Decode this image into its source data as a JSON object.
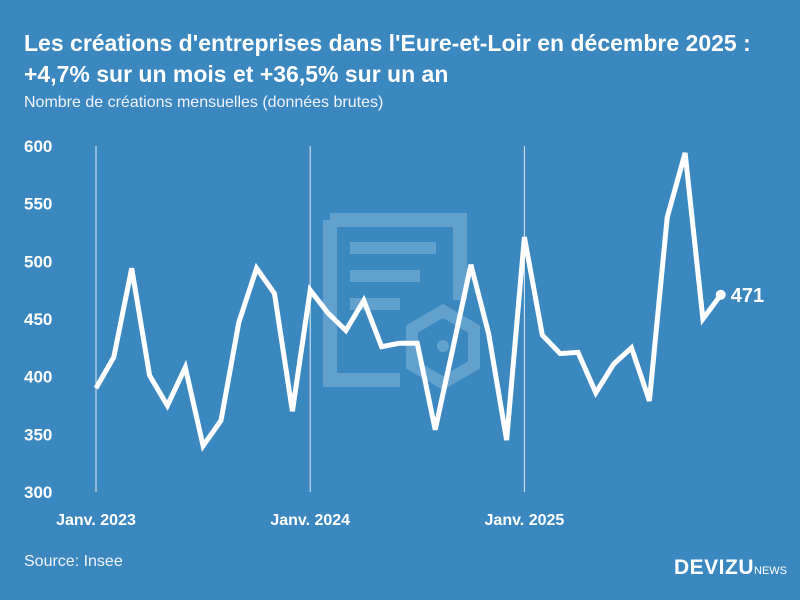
{
  "title": "Les créations d'entreprises dans l'Eure-et-Loir en décembre 2025 : +4,7% sur un mois et +36,5% sur un an",
  "subtitle": "Nombre de créations mensuelles (données brutes)",
  "source": "Source: Insee",
  "logo": {
    "main": "DEVIZU",
    "suffix": "NEWS"
  },
  "colors": {
    "background": "#3b88c1",
    "line": "#ffffff"
  },
  "chart_data": {
    "type": "line",
    "title": "Les créations d'entreprises dans l'Eure-et-Loir en décembre 2025 : +4,7% sur un mois et +36,5% sur un an",
    "ylabel": "",
    "xlabel": "",
    "ylim": [
      300,
      600
    ],
    "yticks": [
      "300",
      "350",
      "400",
      "450",
      "500",
      "550",
      "600"
    ],
    "xticks": [
      "Janv. 2023",
      "Janv. 2024",
      "Janv. 2025"
    ],
    "grid": "vertical lines at January",
    "x": [
      "2023-01",
      "2023-02",
      "2023-03",
      "2023-04",
      "2023-05",
      "2023-06",
      "2023-07",
      "2023-08",
      "2023-09",
      "2023-10",
      "2023-11",
      "2023-12",
      "2024-01",
      "2024-02",
      "2024-03",
      "2024-04",
      "2024-05",
      "2024-06",
      "2024-07",
      "2024-08",
      "2024-09",
      "2024-10",
      "2024-11",
      "2024-12",
      "2025-01",
      "2025-02",
      "2025-03",
      "2025-04",
      "2025-05",
      "2025-06",
      "2025-07",
      "2025-08",
      "2025-09",
      "2025-10",
      "2025-11",
      "2025-12"
    ],
    "values": [
      390,
      417,
      494,
      401,
      375,
      408,
      340,
      362,
      447,
      494,
      472,
      370,
      475,
      455,
      440,
      466,
      426,
      429,
      429,
      354,
      425,
      497,
      437,
      345,
      521,
      436,
      420,
      421,
      386,
      411,
      425,
      379,
      538,
      594,
      450,
      471
    ],
    "end_label": "471"
  }
}
